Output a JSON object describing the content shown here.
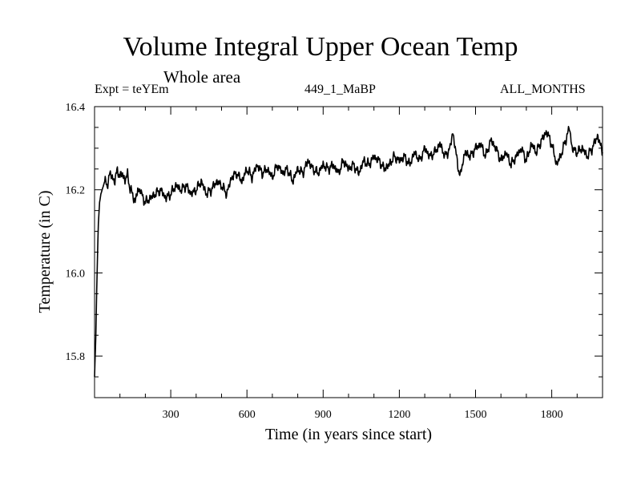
{
  "chart_data": {
    "type": "line",
    "title": "Volume Integral Upper Ocean Temp",
    "subtitle": "Whole area",
    "header_left": "Expt = teYEm",
    "header_center": "449_1_MaBP",
    "header_right": "ALL_MONTHS",
    "xlabel": "Time (in years since start)",
    "ylabel": "Temperature (in C)",
    "xlim": [
      0,
      2000
    ],
    "ylim": [
      15.7,
      16.4
    ],
    "xticks_major": [
      300,
      600,
      900,
      1200,
      1500,
      1800
    ],
    "yticks_major": [
      15.8,
      16.0,
      16.2,
      16.4
    ],
    "ytick_labels": [
      "15.8",
      "16.0",
      "16.2",
      "16.4"
    ],
    "grid": false,
    "series": [
      {
        "name": "Volume Integral Upper Ocean Temp",
        "color": "#000000",
        "x": [
          0,
          5,
          10,
          15,
          20,
          25,
          30,
          40,
          50,
          60,
          70,
          80,
          90,
          100,
          110,
          120,
          130,
          140,
          150,
          160,
          170,
          180,
          190,
          200,
          220,
          240,
          260,
          280,
          300,
          320,
          340,
          360,
          380,
          400,
          420,
          440,
          460,
          480,
          500,
          520,
          540,
          560,
          580,
          600,
          620,
          640,
          660,
          680,
          700,
          720,
          740,
          760,
          780,
          800,
          820,
          840,
          860,
          880,
          900,
          920,
          940,
          960,
          980,
          1000,
          1020,
          1040,
          1060,
          1080,
          1100,
          1120,
          1140,
          1160,
          1180,
          1200,
          1220,
          1240,
          1260,
          1280,
          1300,
          1320,
          1340,
          1360,
          1380,
          1400,
          1410,
          1420,
          1430,
          1440,
          1450,
          1460,
          1480,
          1500,
          1520,
          1540,
          1560,
          1580,
          1600,
          1620,
          1640,
          1660,
          1680,
          1700,
          1720,
          1740,
          1760,
          1780,
          1800,
          1820,
          1840,
          1860,
          1870,
          1880,
          1900,
          1920,
          1940,
          1960,
          1980,
          2000
        ],
        "y": [
          15.75,
          15.85,
          16.0,
          16.12,
          16.17,
          16.19,
          16.2,
          16.22,
          16.21,
          16.24,
          16.23,
          16.22,
          16.25,
          16.23,
          16.24,
          16.22,
          16.24,
          16.2,
          16.19,
          16.17,
          16.2,
          16.2,
          16.18,
          16.17,
          16.18,
          16.19,
          16.2,
          16.18,
          16.19,
          16.21,
          16.2,
          16.21,
          16.19,
          16.2,
          16.22,
          16.19,
          16.2,
          16.22,
          16.21,
          16.19,
          16.23,
          16.24,
          16.22,
          16.25,
          16.23,
          16.26,
          16.24,
          16.25,
          16.23,
          16.26,
          16.24,
          16.25,
          16.22,
          16.25,
          16.24,
          16.27,
          16.25,
          16.24,
          16.26,
          16.25,
          16.26,
          16.24,
          16.27,
          16.25,
          16.26,
          16.24,
          16.27,
          16.26,
          16.28,
          16.27,
          16.25,
          16.26,
          16.28,
          16.27,
          16.28,
          16.26,
          16.29,
          16.27,
          16.3,
          16.28,
          16.29,
          16.31,
          16.28,
          16.3,
          16.34,
          16.3,
          16.26,
          16.23,
          16.27,
          16.29,
          16.28,
          16.3,
          16.31,
          16.28,
          16.32,
          16.3,
          16.27,
          16.29,
          16.26,
          16.28,
          16.3,
          16.27,
          16.31,
          16.29,
          16.32,
          16.34,
          16.31,
          16.26,
          16.29,
          16.33,
          16.35,
          16.3,
          16.29,
          16.3,
          16.28,
          16.3,
          16.33,
          16.29
        ]
      }
    ]
  }
}
